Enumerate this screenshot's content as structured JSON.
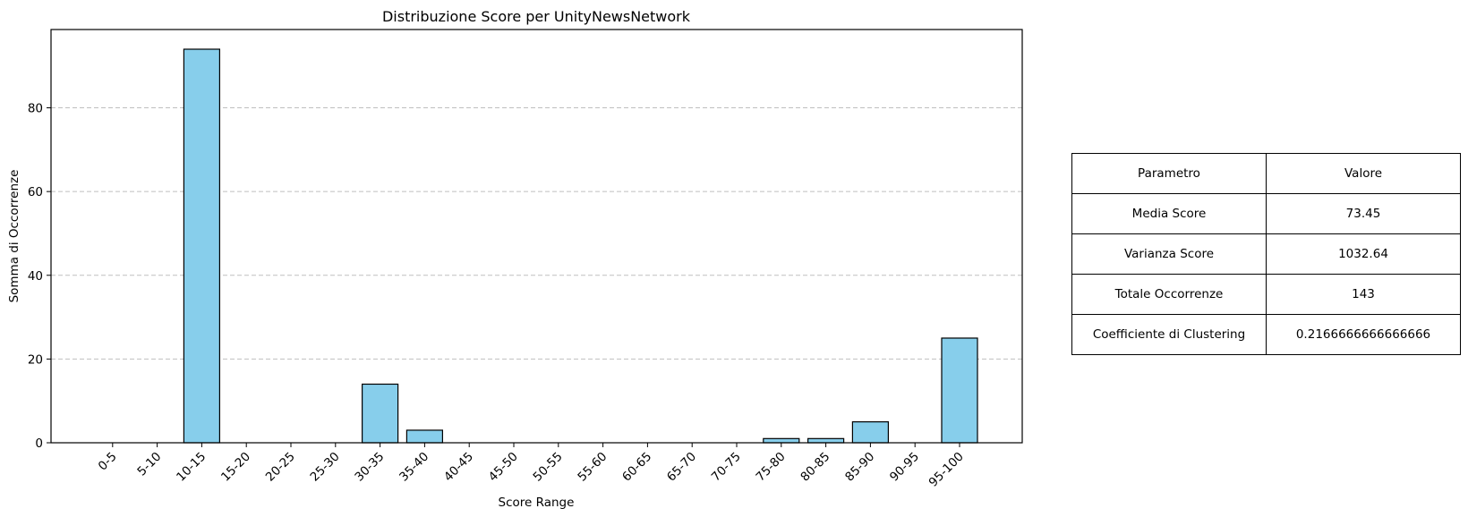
{
  "chart_data": {
    "type": "bar",
    "title": "Distribuzione Score per UnityNewsNetwork",
    "xlabel": "Score Range",
    "ylabel": "Somma di Occorrenze",
    "categories": [
      "0-5",
      "5-10",
      "10-15",
      "15-20",
      "20-25",
      "25-30",
      "30-35",
      "35-40",
      "40-45",
      "45-50",
      "50-55",
      "55-60",
      "60-65",
      "65-70",
      "70-75",
      "75-80",
      "80-85",
      "85-90",
      "90-95",
      "95-100"
    ],
    "values": [
      0,
      0,
      94,
      0,
      0,
      0,
      14,
      3,
      0,
      0,
      0,
      0,
      0,
      0,
      0,
      1,
      1,
      5,
      0,
      25
    ],
    "ylim": [
      0,
      98.7
    ],
    "yticks": [
      0,
      20,
      40,
      60,
      80
    ],
    "grid": "y-dashed",
    "bar_color": "#87ceeb",
    "edge_color": "#000000"
  },
  "table": {
    "header": [
      "Parametro",
      "Valore"
    ],
    "rows": [
      [
        "Media Score",
        "73.45"
      ],
      [
        "Varianza Score",
        "1032.64"
      ],
      [
        "Totale Occorrenze",
        "143"
      ],
      [
        "Coefficiente di Clustering",
        "0.2166666666666666"
      ]
    ]
  }
}
